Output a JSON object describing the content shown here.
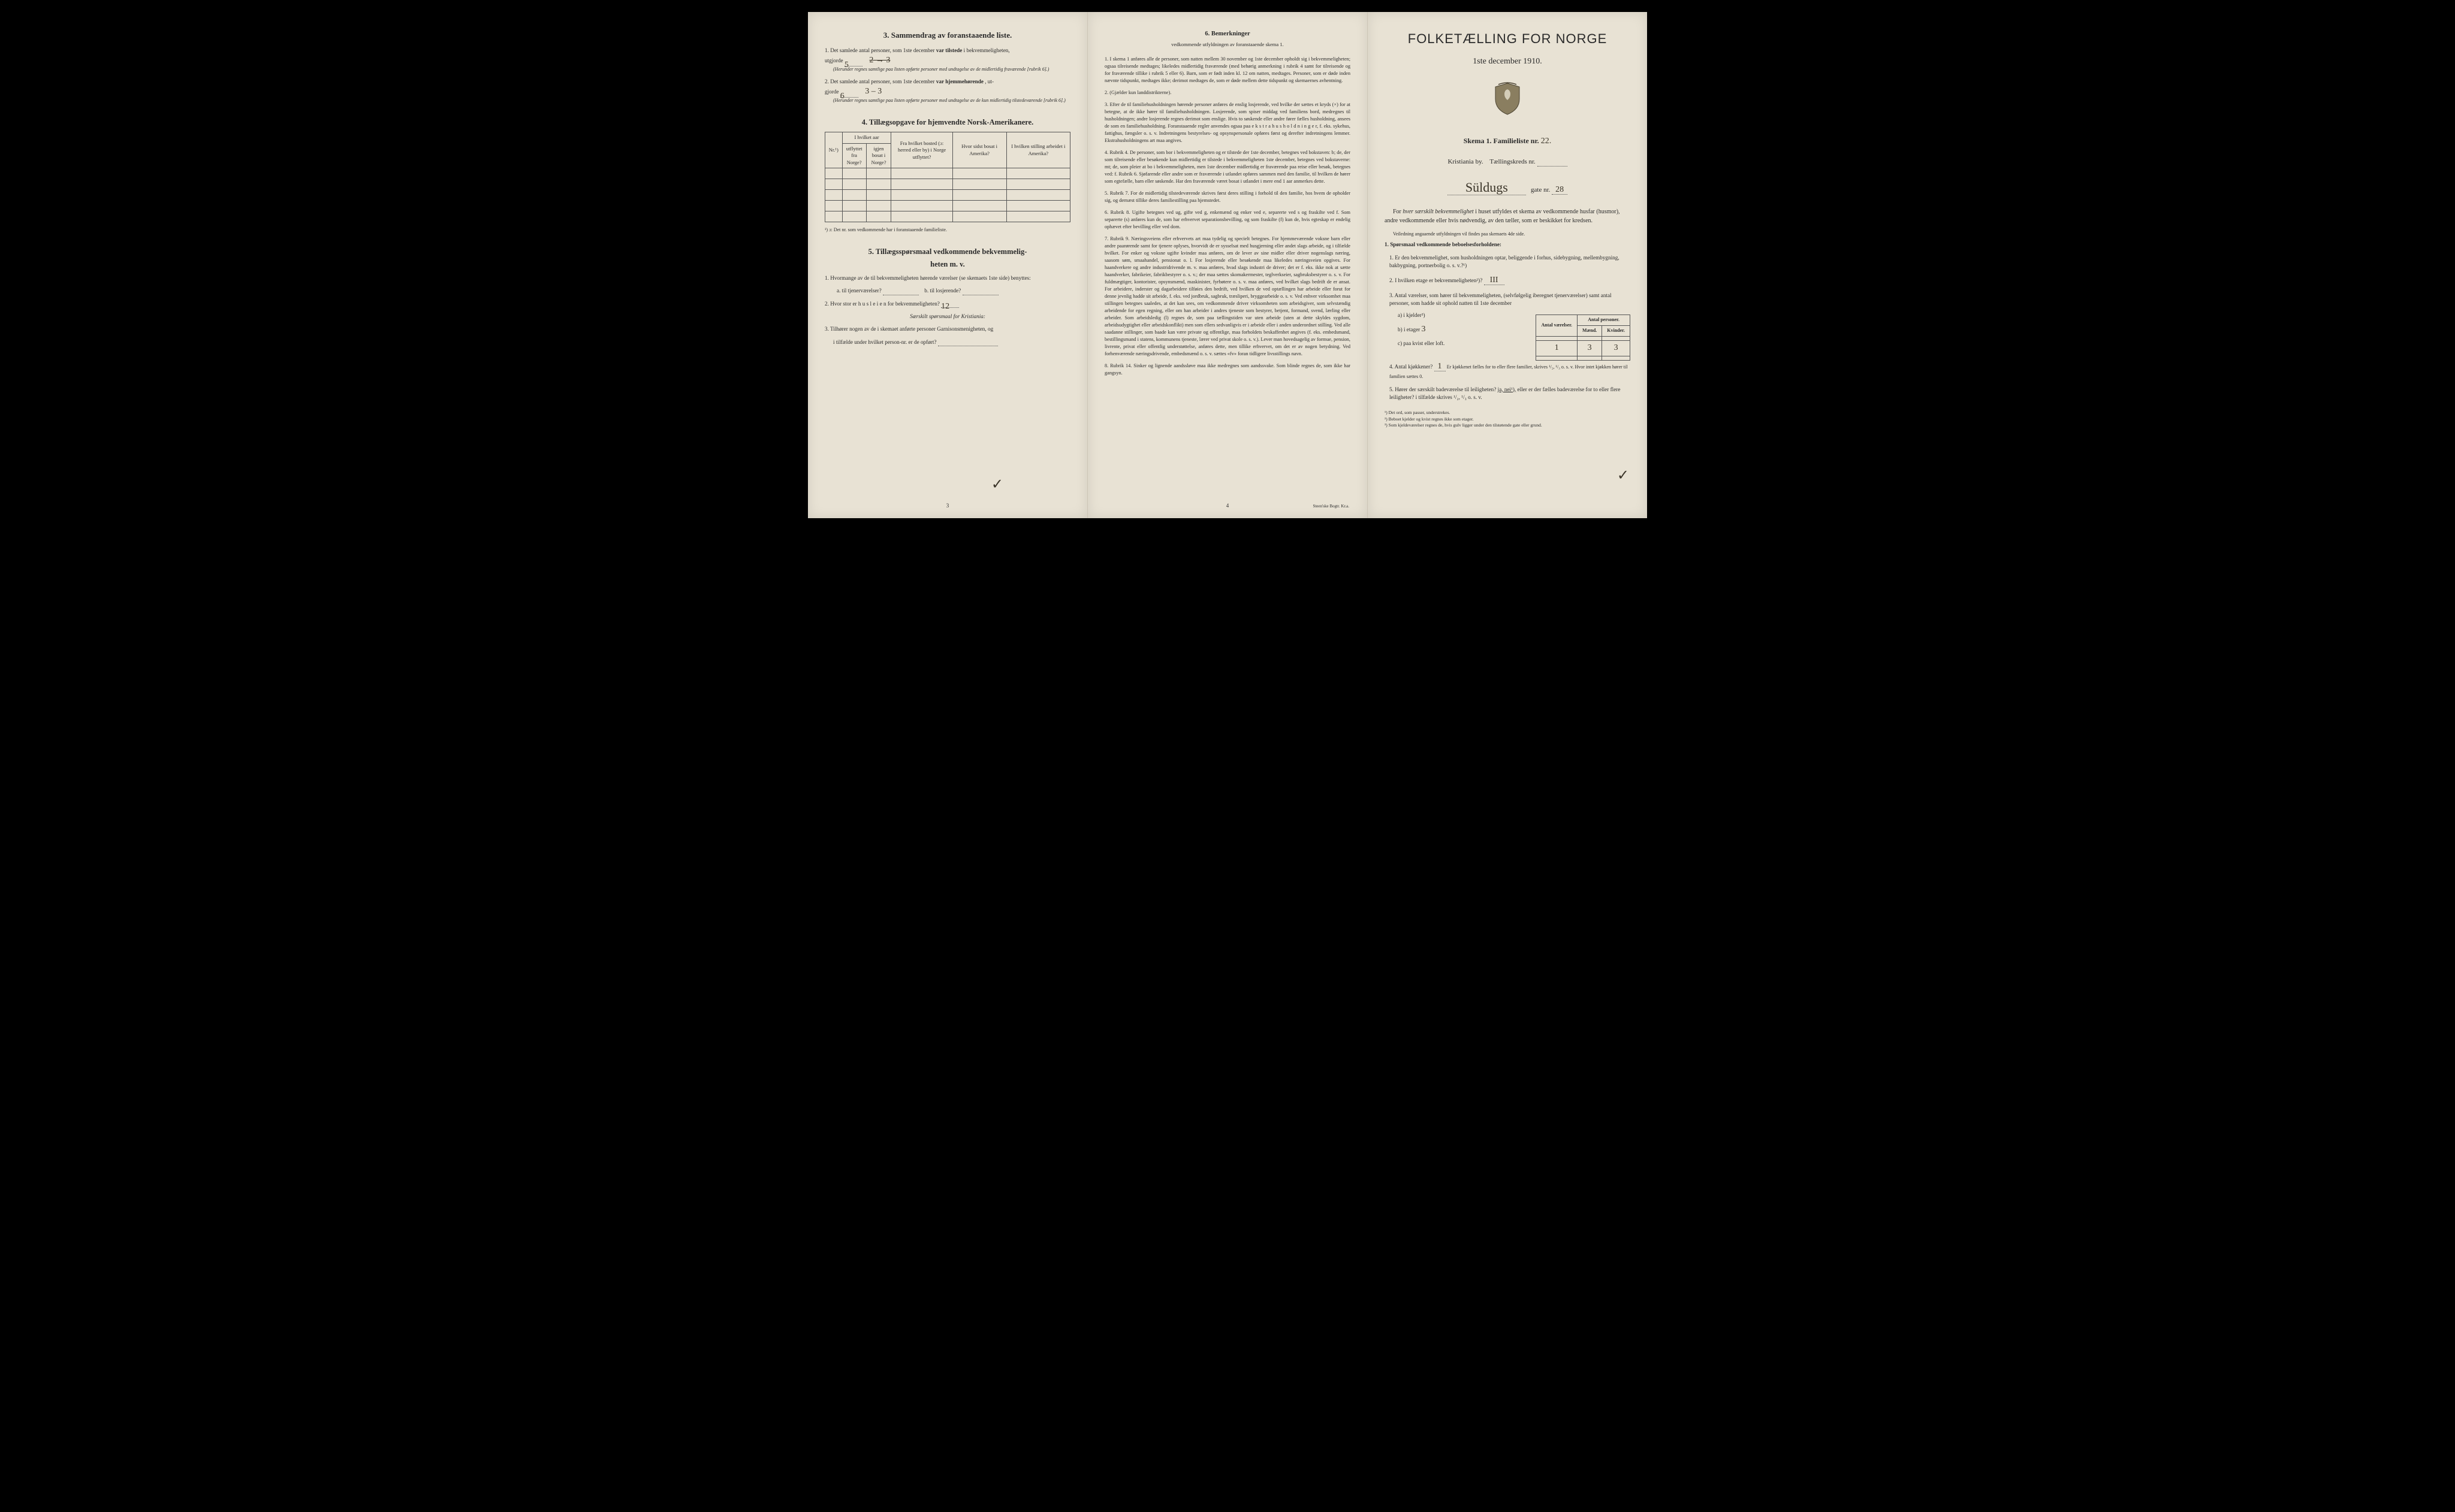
{
  "page_left": {
    "section3": {
      "heading": "3.   Sammendrag av foranstaaende liste.",
      "q1_pre": "1. Det samlede antal personer, som 1ste december",
      "q1_bold": "var tilstede",
      "q1_post": " i bekvemmeligheten,",
      "q1_line2": "utgjorde",
      "q1_val": "5",
      "q1_strike": "2 → 3",
      "q1_note": "(Herunder regnes samtlige paa listen opførte personer med undtagelse av de midlertidig fraværende [rubrik 6].)",
      "q2_pre": "2. Det samlede antal personer, som 1ste december",
      "q2_bold": "var hjemmehørende",
      "q2_post": ", ut-",
      "q2_line2": "gjorde",
      "q2_val": "6",
      "q2_strike": "3 – 3",
      "q2_note": "(Herunder regnes samtlige paa listen opførte personer med undtagelse av de kun midlertidig tilstedeværende [rubrik 6].)"
    },
    "section4": {
      "heading": "4.   Tillægsopgave for hjemvendte Norsk-Amerikanere.",
      "cols": {
        "c1": "Nr.¹)",
        "c2a": "I hvilket aar",
        "c2b_l": "utflyttet fra Norge?",
        "c2b_r": "igjen bosat i Norge?",
        "c3": "Fra hvilket bosted (ɔ: herred eller by) i Norge utflyttet?",
        "c4": "Hvor sidst bosat i Amerika?",
        "c5": "I hvilken stilling arbeidet i Amerika?"
      },
      "footnote": "¹) ɔ: Det nr. som vedkommende har i foranstaaende familieliste."
    },
    "section5": {
      "heading_a": "5.   Tillægsspørsmaal vedkommende bekvemmelig-",
      "heading_b": "heten m. v.",
      "q1": "1. Hvormange av de til bekvemmeligheten hørende værelser (se skemaets 1ste side) benyttes:",
      "q1a": "a. til tjenerværelser?",
      "q1b": "b. til losjerende?",
      "q2": "2. Hvor stor er  h u s l e i e n  for bekvemmeligheten?",
      "q2_val": "12",
      "q2_note": "Særskilt spørsmaal for Kristiania:",
      "q3": "3. Tilhører nogen av de i skemaet anførte personer Garnisonsmenigheten, og",
      "q3b": "i tilfælde under hvilket person-nr. er de opført?"
    },
    "page_num": "3"
  },
  "page_mid": {
    "heading": "6.   Bemerkninger",
    "subhead": "vedkommende utfyldningen av foranstaaende skema 1.",
    "items": [
      "1. I skema 1 anføres alle de personer, som natten mellem 30 november og 1ste december opholdt sig i bekvemmeligheten; ogsaa tilreisende medtages; likeledes midlertidig fraværende (med behørig anmerkning i rubrik 4 samt for tilreisende og for fraværende tillike i rubrik 5 eller 6). Barn, som er født inden kl. 12 om natten, medtages. Personer, som er døde inden nævnte tidspunkt, medtages ikke; derimot medtages de, som er døde mellem dette tidspunkt og skemaernes avhentning.",
      "2. (Gjælder kun landdistrikterne).",
      "3. Efter de til familiehusholdningen hørende personer anføres de enslig losjerende, ved hvilke der sættes et kryds (×) for at betegne, at de ikke hører til familiehusholdningen. Losjerende, som spiser middag ved familiens bord, medregnes til husholdningen; andre losjerende regnes derimot som enslige. Hvis to søskende eller andre fører fælles husholdning, ansees de som en familiehusholdning.\n      Foranstaaende regler anvendes ogsaa paa e k s t r a h u s h o l d n i n g e r, f. eks. sykehus, fattighus, fængsler o. s. v. Indretningens bestyrelses- og opsynspersonale opføres først og derefter indretningens lemmer. Ekstrahusholdningens art maa angives.",
      "4. Rubrik 4. De personer, som bor i bekvemmeligheten og er tilstede der 1ste december, betegnes ved bokstaven: b; de, der som tilreisende eller besøkende kun midlertidig er tilstede i bekvemmeligheten 1ste december, betegnes ved bokstaverne: mt; de, som pleier at bo i bekvemmeligheten, men 1ste december midlertidig er fraværende paa reise eller besøk, betegnes ved: f.\n      Rubrik 6. Sjøfarende eller andre som er fraværende i utlandet opføres sammen med den familie, til hvilken de hører som egtefælle, barn eller søskende.\n      Har den fraværende været bosat i utlandet i mere end 1 aar anmerkes dette.",
      "5. Rubrik 7. For de midlertidig tilstedeværende skrives først deres stilling i forhold til den familie, hos hvem de opholder sig, og dernæst tillike deres familiestilling paa hjemstedet.",
      "6. Rubrik 8. Ugifte betegnes ved ug, gifte ved g, enkemænd og enker ved e, separerte ved s og fraskilte ved f. Som separerte (s) anføres kun de, som har erhvervet separationsbevilling, og som fraskilte (f) kun de, hvis egteskap er endelig ophævet efter bevilling eller ved dom.",
      "7. Rubrik 9. Næringsveiens eller erhvervets art maa tydelig og specielt betegnes.\n      For hjemmeværende voksne barn eller andre paarørende samt for tjenere oplyses, hvorvidt de er sysselsat med husgjerning eller andet slags arbeide, og i tilfælde hvilket. For enker og voksne ugifte kvinder maa anføres, om de lever av sine midler eller driver nogenslags næring, saasom søm, smaahandel, pensionat o. l.\n      For losjerende eller besøkende maa likeledes næringsveien opgives.\n      For haandverkere og andre industridrivende m. v. maa anføres, hvad slags industri de driver; det er f. eks. ikke nok at sætte haandverker, fabrikeier, fabrikbestyrer o. s. v.; der maa sættes skomakermester, teglverkseier, sagbruksbestyrer o. s. v.\n      For fuldmægtiger, kontorister, opsynsmænd, maskinister, fyrbøtere o. s. v. maa anføres, ved hvilket slags bedrift de er ansat.\n      For arbeidere, inderster og dagarbeidere tilføies den bedrift, ved hvilken de ved optællingen har arbeide eller forut for denne jevnlig hadde sit arbeide, f. eks. ved jordbruk, sagbruk, træsliperi, bryggearbeide o. s. v.\n      Ved enhver virksomhet maa stillingen betegnes saaledes, at det kan sees, om vedkommende driver virksomheten som arbeidsgiver, som selvstændig arbeidende for egen regning, eller om han arbeider i andres tjeneste som bestyrer, betjent, formand, svend, lærling eller arbeider.\n      Som arbeidsledig (l) regnes de, som paa tællingstiden var uten arbeide (uten at dette skyldes sygdom, arbeidsudygtighet eller arbeidskonflikt) men som ellers sedvanligvis er i arbeide eller i anden underordnet stilling.\n      Ved alle saadanne stillinger, som baade kan være private og offentlige, maa forholdets beskaffenhet angives (f. eks. embedsmand, bestillingsmand i statens, kommunens tjeneste, lærer ved privat skole o. s. v.).\n      Lever man hovedsagelig av formue, pension, livrente, privat eller offentlig understøttelse, anføres dette, men tillike erhvervet, om det er av nogen betydning.\n      Ved forhenværende næringsdrivende, embedsmænd o. s. v. sættes «fv» foran tidligere livsstillings navn.",
      "8. Rubrik 14. Sinker og lignende aandssløve maa ikke medregnes som aandssvake. Som blinde regnes de, som ikke har gangsyn."
    ],
    "page_num": "4",
    "printer": "Steen'ske Bogtr.   Kr.a."
  },
  "page_right": {
    "title": "FOLKETÆLLING FOR NORGE",
    "date": "1ste december 1910.",
    "skema": "Skema 1.    Familieliste nr.",
    "skema_val": "22.",
    "city": "Kristiania by.",
    "kreds_label": "Tællingskreds nr.",
    "street_hand": "Süldugs",
    "gate_label": "gate nr.",
    "gate_val": "28",
    "intro1_a": "For ",
    "intro1_b": "hver særskilt bekvemmelighet",
    "intro1_c": " i huset utfyldes et skema av vedkommende husfar (husmor), andre vedkommende eller hvis nødvendig, av den tæller, som er beskikket for kredsen.",
    "intro2": "Veiledning angaaende utfyldningen vil findes paa skemaets 4de side.",
    "heading1": "1. Spørsmaal vedkommende beboelsesforholdene:",
    "q1": "1. Er den bekvemmelighet, som husholdningen optar, beliggende i forhus, sidebygning, mellembygning, bakbygning, portnerbolig o. s. v.?¹)",
    "q2": "2. I hvilken etage er bekvemmeligheten²)?",
    "q2_val": "III",
    "q3": "3. Antal værelser, som hører til bekvemmeligheten, (selvfølgelig iberegnet tjenerværelser) samt antal personer, som hadde sit ophold natten til 1ste december",
    "table": {
      "h1": "Antal værelser.",
      "h2": "Antal personer.",
      "h2a": "Mænd.",
      "h2b": "Kvinder.",
      "r1": "a) i kjelder³)",
      "r2": "b) i etager",
      "r2_v1": "1",
      "r2_v2": "3",
      "r2_v3": "3",
      "r2_hand": "3",
      "r3": "c) paa kvist eller loft."
    },
    "q4": "4. Antal kjøkkener?",
    "q4_val": "1",
    "q4_post": "   Er kjøkkenet fælles for to eller flere familier, skrives ¹/₂, ¹/₃ o. s. v.   Hvor intet kjøkken hører til familien sættes 0.",
    "q5_a": "5. Hører der særskilt badeværelse til leiligheten?",
    "q5_jn": "ja, nei¹),",
    "q5_b": " eller er der fælles badeværelse for to eller flere leiligheter?  i tilfælde skrives ¹/₂, ¹/₃ o. s. v.",
    "fn1": "¹) Det ord, som passer, understrekes.",
    "fn2": "²) Beboet kjelder og kvist regnes ikke som etager.",
    "fn3": "³) Som kjeldeværelser regnes de, hvis gulv ligger under den tilstøtende gate eller grund."
  },
  "colors": {
    "paper": "#e8e2d4",
    "ink": "#2a2a2a",
    "hand": "#3a3428"
  }
}
